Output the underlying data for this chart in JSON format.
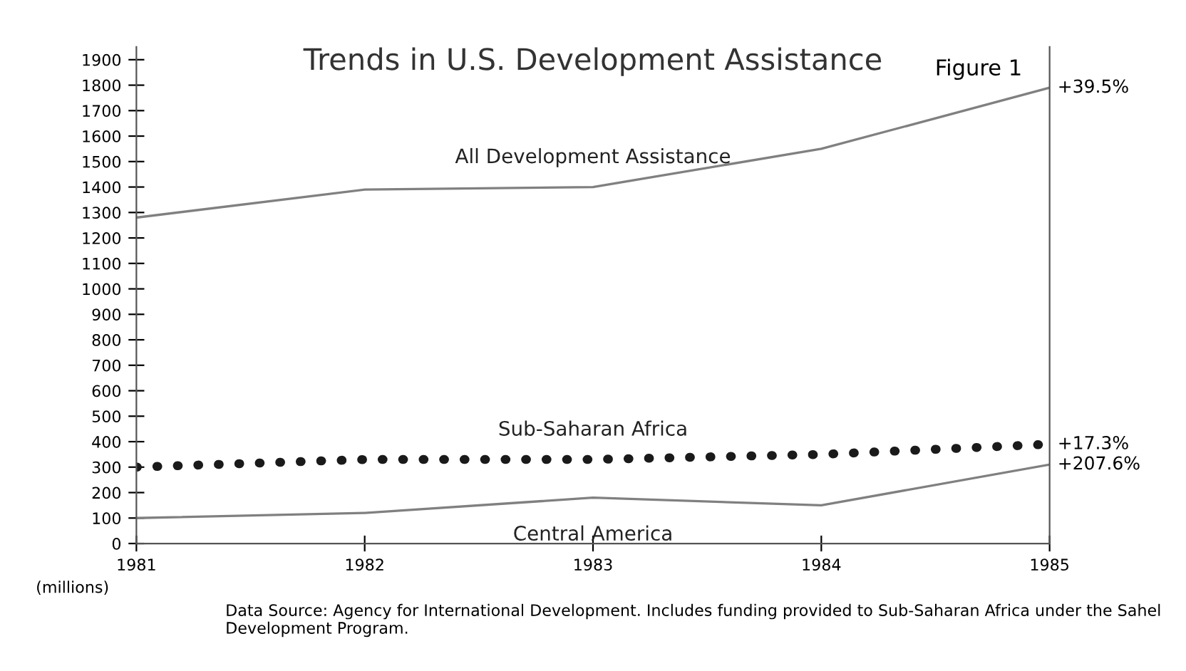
{
  "chart_data": {
    "type": "line",
    "title": "Trends in U.S. Development Assistance",
    "ylabel": "(millions)",
    "x": [
      1981,
      1982,
      1983,
      1984,
      1985
    ],
    "xlim": [
      1981,
      1985
    ],
    "xticks": [
      1981,
      1982,
      1983,
      1984,
      1985
    ],
    "ylim": [
      0,
      1950
    ],
    "yticks": [
      0,
      100,
      200,
      300,
      400,
      500,
      600,
      700,
      800,
      900,
      1000,
      1100,
      1200,
      1300,
      1400,
      1500,
      1600,
      1700,
      1800,
      1900
    ],
    "grid": false,
    "legend": false,
    "series": [
      {
        "name": "All Development Assistance",
        "color": "#808080",
        "line_style": "solid",
        "values": [
          1280,
          1390,
          1400,
          1550,
          1790
        ]
      },
      {
        "name": "Sub-Saharan Africa",
        "color": "#1a1a1a",
        "line_style": "dotted",
        "values": [
          300,
          330,
          330,
          350,
          390
        ]
      },
      {
        "name": "Central America",
        "color": "#808080",
        "line_style": "solid",
        "values": [
          100,
          120,
          180,
          150,
          310
        ]
      }
    ],
    "annotations": [
      "Figure 1",
      "+39.5%",
      "+17.3%",
      "+207.6%",
      "Data Source: Agency for International Development. Includes funding provided to Sub-Saharan Africa under the Sahel Development Program."
    ]
  }
}
